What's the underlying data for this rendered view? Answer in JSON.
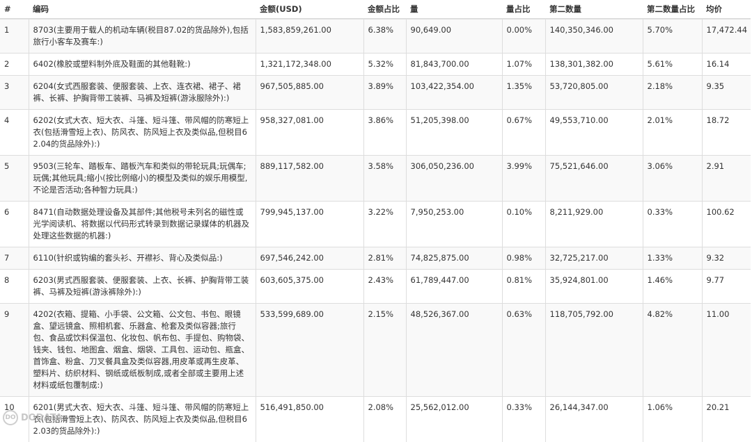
{
  "table": {
    "headers": [
      "#",
      "编码",
      "金额(USD)",
      "金额占比",
      "量",
      "量占比",
      "第二数量",
      "第二数量占比",
      "均价"
    ],
    "rows": [
      {
        "idx": "1",
        "code": "8703(主要用于载人的机动车辆(税目87.02的货品除外),包括旅行小客车及赛车:)",
        "amount": "1,583,859,261.00",
        "amount_pct": "6.38%",
        "qty": "90,649.00",
        "qty_pct": "0.00%",
        "qty2": "140,350,346.00",
        "qty2_pct": "5.70%",
        "avg": "17,472.44"
      },
      {
        "idx": "2",
        "code": "6402(橡胶或塑料制外底及鞋面的其他鞋靴:)",
        "amount": "1,321,172,348.00",
        "amount_pct": "5.32%",
        "qty": "81,843,700.00",
        "qty_pct": "1.07%",
        "qty2": "138,301,382.00",
        "qty2_pct": "5.61%",
        "avg": "16.14"
      },
      {
        "idx": "3",
        "code": "6204(女式西服套装、便服套装、上衣、连衣裙、裙子、裙裤、长裤、护胸背带工装裤、马裤及短裤(游泳服除外):)",
        "amount": "967,505,885.00",
        "amount_pct": "3.89%",
        "qty": "103,422,354.00",
        "qty_pct": "1.35%",
        "qty2": "53,720,805.00",
        "qty2_pct": "2.18%",
        "avg": "9.35"
      },
      {
        "idx": "4",
        "code": "6202(女式大衣、短大衣、斗篷、短斗篷、带风帽的防寒短上衣(包括滑雪短上衣)、防风衣、防风短上衣及类似品,但税目62.04的货品除外):)",
        "amount": "958,327,081.00",
        "amount_pct": "3.86%",
        "qty": "51,205,398.00",
        "qty_pct": "0.67%",
        "qty2": "49,553,710.00",
        "qty2_pct": "2.01%",
        "avg": "18.72"
      },
      {
        "idx": "5",
        "code": "9503(三轮车、踏板车、踏板汽车和类似的带轮玩具;玩偶车;玩偶;其他玩具;缩小(按比例缩小)的模型及类似的娱乐用模型,不论是否活动;各种智力玩具:)",
        "amount": "889,117,582.00",
        "amount_pct": "3.58%",
        "qty": "306,050,236.00",
        "qty_pct": "3.99%",
        "qty2": "75,521,646.00",
        "qty2_pct": "3.06%",
        "avg": "2.91"
      },
      {
        "idx": "6",
        "code": "8471(自动数据处理设备及其部件;其他税号未列名的磁性或光学阅读机、将数据以代码形式转录到数据记录媒体的机器及处理这些数据的机器:)",
        "amount": "799,945,137.00",
        "amount_pct": "3.22%",
        "qty": "7,950,253.00",
        "qty_pct": "0.10%",
        "qty2": "8,211,929.00",
        "qty2_pct": "0.33%",
        "avg": "100.62"
      },
      {
        "idx": "7",
        "code": "6110(针织或钩编的套头衫、开襟衫、背心及类似品:)",
        "amount": "697,546,242.00",
        "amount_pct": "2.81%",
        "qty": "74,825,875.00",
        "qty_pct": "0.98%",
        "qty2": "32,725,217.00",
        "qty2_pct": "1.33%",
        "avg": "9.32"
      },
      {
        "idx": "8",
        "code": "6203(男式西服套装、便服套装、上衣、长裤、护胸背带工装裤、马裤及短裤(游泳裤除外):)",
        "amount": "603,605,375.00",
        "amount_pct": "2.43%",
        "qty": "61,789,447.00",
        "qty_pct": "0.81%",
        "qty2": "35,924,801.00",
        "qty2_pct": "1.46%",
        "avg": "9.77"
      },
      {
        "idx": "9",
        "code": "4202(衣箱、提箱、小手袋、公文箱、公文包、书包、眼镜盒、望远镜盒、照相机套、乐器盒、枪套及类似容器;旅行包、食品或饮料保温包、化妆包、帆布包、手提包、购物袋、钱夹、钱包、地图盒、烟盒、烟袋、工具包、运动包、瓶盒、首饰盒、粉盒、刀叉餐具盒及类似容器,用皮革或再生皮革、塑料片、纺织材料、钢纸或纸板制成,或者全部或主要用上述材料或纸包覆制成:)",
        "amount": "533,599,689.00",
        "amount_pct": "2.15%",
        "qty": "48,526,367.00",
        "qty_pct": "0.63%",
        "qty2": "118,705,792.00",
        "qty2_pct": "4.82%",
        "avg": "11.00"
      },
      {
        "idx": "10",
        "code": "6201(男式大衣、短大衣、斗篷、短斗篷、带风帽的防寒短上衣(包括滑雪短上衣)、防风衣、防风短上衣及类似品,但税目62.03的货品除外):)",
        "amount": "516,491,850.00",
        "amount_pct": "2.08%",
        "qty": "25,562,012.00",
        "qty_pct": "0.33%",
        "qty2": "26,144,347.00",
        "qty2_pct": "1.06%",
        "avg": "20.21"
      }
    ]
  },
  "watermark": {
    "text": "DODATA",
    "logo_text": "DO"
  }
}
